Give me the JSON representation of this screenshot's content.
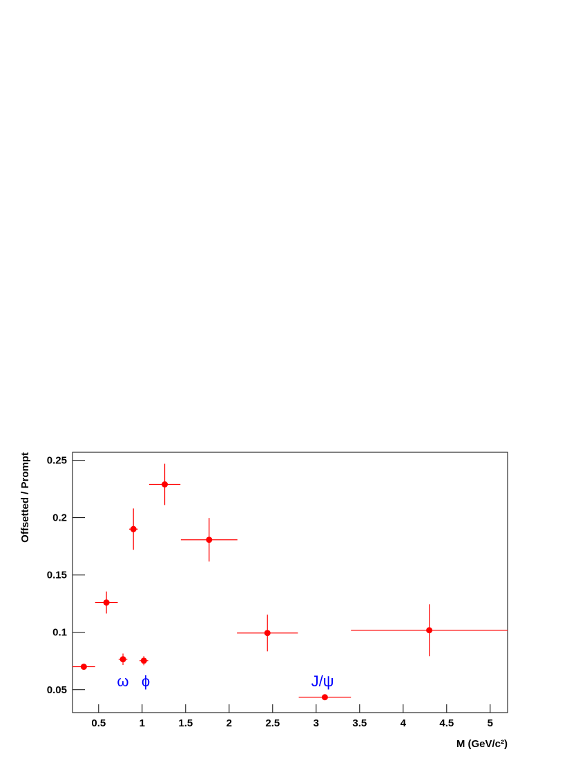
{
  "chart_data": {
    "type": "errorbar",
    "x_label": "M (GeV/c²)",
    "y_label": "Offsetted / Prompt",
    "xlim": [
      0.2,
      5.2
    ],
    "ylim": [
      0.03,
      0.257
    ],
    "xticks": [
      0.5,
      1,
      1.5,
      2,
      2.5,
      3,
      3.5,
      4,
      4.5,
      5
    ],
    "yticks": [
      0.05,
      0.1,
      0.15,
      0.2,
      0.25
    ],
    "series": [
      {
        "color": "#ff0000",
        "x": [
          0.33,
          0.59,
          0.78,
          0.9,
          1.02,
          1.26,
          1.77,
          2.44,
          3.1,
          4.3
        ],
        "xerr": [
          0.13,
          0.13,
          0.05,
          0.05,
          0.05,
          0.18,
          0.325,
          0.35,
          0.3,
          0.9
        ],
        "values": [
          0.07,
          0.126,
          0.0765,
          0.19,
          0.0753,
          0.229,
          0.1807,
          0.0994,
          0.0434,
          0.1018
        ],
        "yerr": [
          0.0005,
          0.0096,
          0.005,
          0.018,
          0.004,
          0.018,
          0.019,
          0.016,
          0.0005,
          0.0226
        ]
      }
    ],
    "annotations": [
      "ω",
      "ϕ",
      "J/ψ"
    ],
    "annotation_color": "#0000ff"
  }
}
